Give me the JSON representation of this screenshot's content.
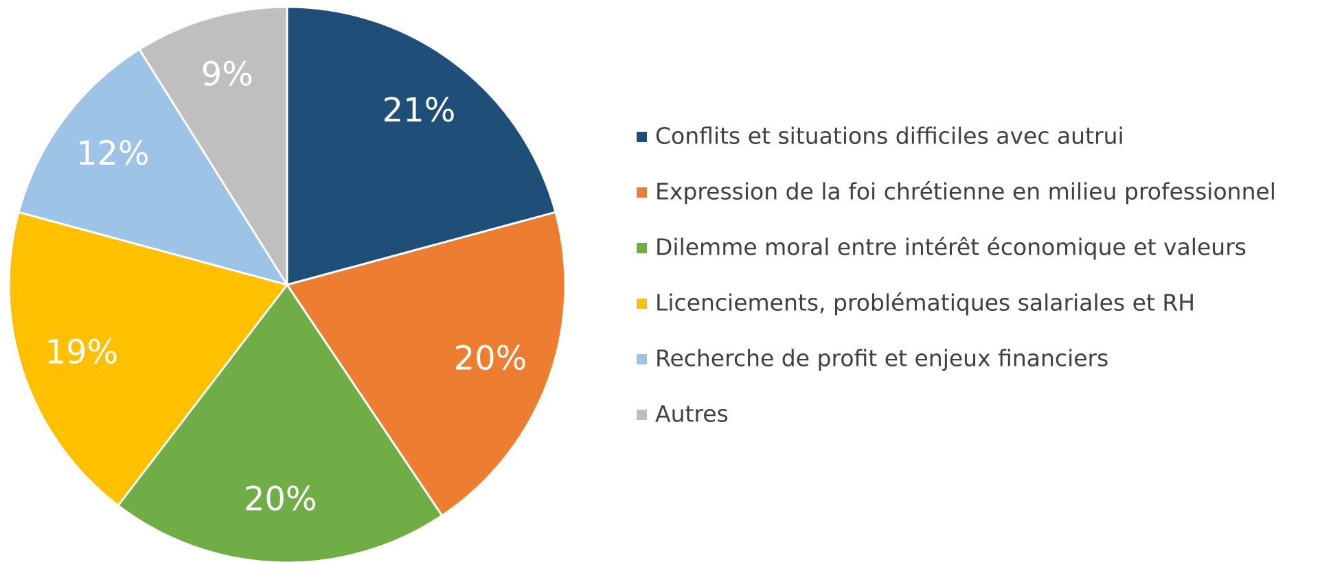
{
  "chart_data": {
    "type": "pie",
    "categories": [
      "Conflits et situations difficiles avec autrui",
      "Expression de la foi chrétienne en milieu professionnel",
      "Dilemme moral entre intérêt économique et valeurs",
      "Licenciements, problématiques salariales et RH",
      "Recherche de profit et enjeux financiers",
      "Autres"
    ],
    "values": [
      21,
      20,
      20,
      19,
      12,
      9
    ],
    "value_labels": [
      "21%",
      "20%",
      "20%",
      "19%",
      "12%",
      "9%"
    ],
    "colors": [
      "#1f4e79",
      "#ed7d31",
      "#70ad47",
      "#ffc000",
      "#9dc3e6",
      "#bfbfbf"
    ],
    "legend": "right"
  }
}
